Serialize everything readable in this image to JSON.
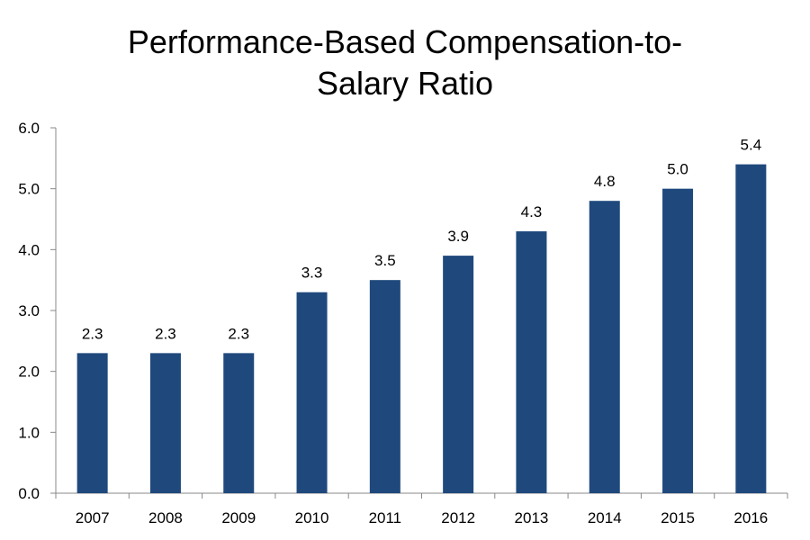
{
  "chart_data": {
    "type": "bar",
    "title_lines": [
      "Performance-Based Compensation-to-",
      "Salary Ratio"
    ],
    "xlabel": "",
    "ylabel": "",
    "categories": [
      "2007",
      "2008",
      "2009",
      "2010",
      "2011",
      "2012",
      "2013",
      "2014",
      "2015",
      "2016"
    ],
    "values": [
      2.3,
      2.3,
      2.3,
      3.3,
      3.5,
      3.9,
      4.3,
      4.8,
      5.0,
      5.4
    ],
    "data_labels": [
      "2.3",
      "2.3",
      "2.3",
      "3.3",
      "3.5",
      "3.9",
      "4.3",
      "4.8",
      "5.0",
      "5.4"
    ],
    "ylim": [
      0,
      6
    ],
    "yticks": [
      0,
      1,
      2,
      3,
      4,
      5,
      6
    ],
    "ytick_labels": [
      "0.0",
      "1.0",
      "2.0",
      "3.0",
      "4.0",
      "5.0",
      "6.0"
    ],
    "grid": false,
    "legend": "none",
    "bar_color": "#1f497d"
  }
}
